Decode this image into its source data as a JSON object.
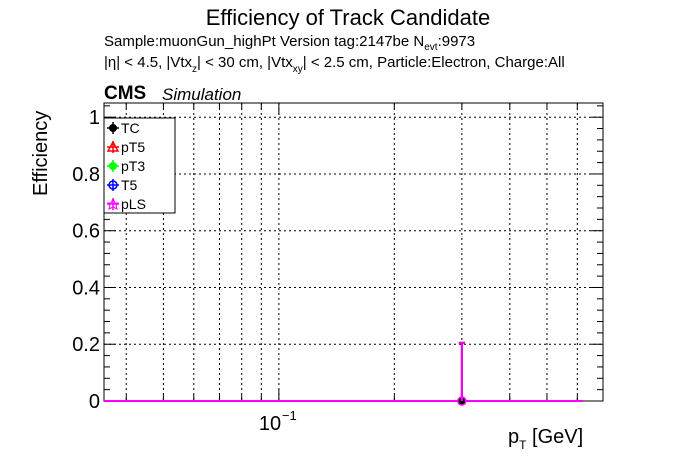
{
  "header": {
    "title": "Efficiency of Track Candidate",
    "sample_line_main": "Sample:muonGun_highPt   Version tag:2147be  N",
    "sample_line_sub": "evt",
    "sample_line_tail": ":9973",
    "cuts_parts": [
      "|η| < 4.5, |Vtx",
      "z",
      "| < 30 cm, |Vtx",
      "xy",
      "| < 2.5 cm, Particle:Electron, Charge:All"
    ],
    "cms_label": "CMS",
    "simulation_label": "Simulation"
  },
  "chart_data": {
    "type": "scatter",
    "title": "Efficiency of Track Candidate",
    "ylabel": "Efficiency",
    "xlabel_main": "p",
    "xlabel_sub": "T",
    "xlabel_unit": " [GeV]",
    "x_scale": "log",
    "xlim": [
      0.035,
      0.7
    ],
    "ylim": [
      0,
      1.05
    ],
    "y_ticks": [
      0,
      0.2,
      0.4,
      0.6,
      0.8,
      1
    ],
    "y_tick_labels": [
      "0",
      "0.2",
      "0.4",
      "0.6",
      "0.8",
      "1"
    ],
    "x_tick_labels": [
      {
        "value": 0.1,
        "base": "10",
        "exp": "−1"
      }
    ],
    "grid": true,
    "legend_position": "top-left",
    "series": [
      {
        "name": "TC",
        "color": "#000000",
        "marker": "filled-circle",
        "x": [
          0.3
        ],
        "y": [
          0
        ],
        "y_err_high": [
          0.205
        ]
      },
      {
        "name": "pT5",
        "color": "#ff0000",
        "marker": "open-triangle",
        "x": [],
        "y": []
      },
      {
        "name": "pT3",
        "color": "#00ff00",
        "marker": "filled-circle",
        "x": [],
        "y": []
      },
      {
        "name": "T5",
        "color": "#0000ff",
        "marker": "open-circle",
        "x": [],
        "y": []
      },
      {
        "name": "pLS",
        "color": "#ff00ff",
        "marker": "open-star",
        "x": [
          0.3
        ],
        "y": [
          0
        ],
        "y_err_high": [
          0.205
        ]
      }
    ],
    "baseline_line": {
      "color": "#ff00ff",
      "y": 0
    }
  }
}
